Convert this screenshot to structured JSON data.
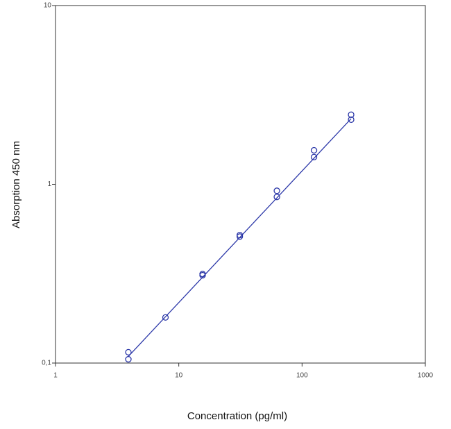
{
  "chart_data": {
    "type": "scatter",
    "x_label": "Concentration (pg/ml)",
    "y_label": "Absorption 450 nm",
    "xlog": true,
    "ylog": true,
    "xlim": [
      1,
      1000
    ],
    "ylim": [
      0.1,
      10
    ],
    "xticks": [
      1,
      10,
      100,
      1000
    ],
    "yticks": [
      {
        "value": 0.1,
        "label": "0,1"
      },
      1,
      10
    ],
    "color": "#2b37a8",
    "x": [
      3.9,
      3.9,
      7.8,
      15.6,
      15.6,
      31.25,
      31.25,
      62.5,
      62.5,
      125,
      125,
      250,
      250
    ],
    "values": [
      0.105,
      0.115,
      0.18,
      0.31,
      0.315,
      0.51,
      0.52,
      0.85,
      0.92,
      1.42,
      1.55,
      2.3,
      2.45
    ],
    "fit_x": [
      3.9,
      250
    ],
    "fit_values": [
      0.109,
      2.33
    ]
  }
}
